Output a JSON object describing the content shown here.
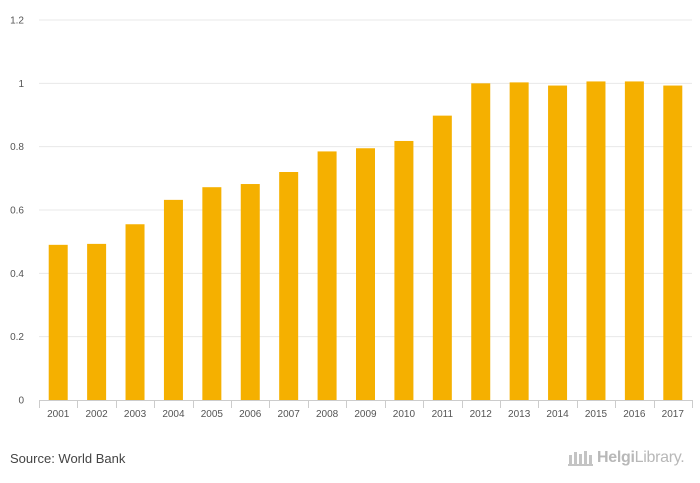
{
  "chart_data": {
    "type": "bar",
    "categories": [
      "2001",
      "2002",
      "2003",
      "2004",
      "2005",
      "2006",
      "2007",
      "2008",
      "2009",
      "2010",
      "2011",
      "2012",
      "2013",
      "2014",
      "2015",
      "2016",
      "2017"
    ],
    "values": [
      0.49,
      0.493,
      0.555,
      0.632,
      0.672,
      0.682,
      0.72,
      0.785,
      0.795,
      0.818,
      0.898,
      1.0,
      1.003,
      0.993,
      1.006,
      1.006,
      0.993
    ],
    "yticks": [
      "0",
      "0.2",
      "0.4",
      "0.6",
      "0.8",
      "1",
      "1.2"
    ],
    "ylim": [
      0,
      1.2
    ],
    "bar_color": "#f5b000",
    "grid_color": "#e8e8e8",
    "grid": true
  },
  "footer": {
    "source": "Source: World Bank",
    "logo_part1": "Helgi",
    "logo_part2": "Library."
  }
}
